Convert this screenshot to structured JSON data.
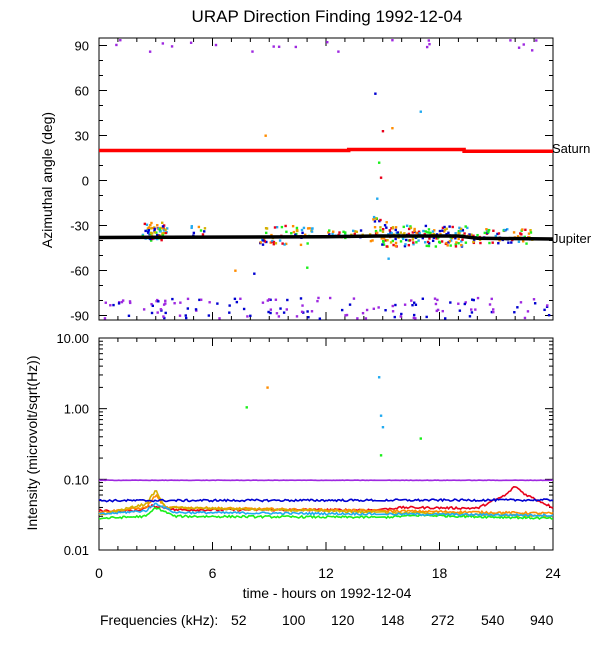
{
  "title": "URAP Direction Finding  1992-12-04",
  "colors": {
    "saturn": "#ff0000",
    "jupiter": "#000000",
    "f52": "#e8001a",
    "f100": "#ff8c00",
    "f120": "#d4b000",
    "f148": "#1aef1a",
    "f272": "#22aaf0",
    "f540": "#0000d0",
    "f940": "#9e28e0"
  },
  "chart_data": [
    {
      "type": "scatter",
      "title": "URAP Direction Finding  1992-12-04",
      "ylabel": "Azimuthal angle (deg)",
      "xlim": [
        0,
        24
      ],
      "ylim": [
        -93,
        95
      ],
      "xticks": [
        0,
        6,
        12,
        18,
        24
      ],
      "yticks": [
        90,
        60,
        30,
        0,
        -30,
        -60,
        -90
      ],
      "ytick_labels": [
        "90",
        "60",
        "30",
        "0",
        "-30",
        "-60",
        "-90"
      ],
      "lines": [
        {
          "name": "Saturn",
          "color": "#ff0000",
          "x": [
            0,
            13.2,
            13.2,
            19.3,
            19.3,
            24
          ],
          "y": [
            20,
            20,
            20.7,
            20.7,
            19.5,
            19.5
          ]
        },
        {
          "name": "Jupiter",
          "color": "#000000",
          "x": [
            0,
            12,
            14.8,
            16,
            18,
            19,
            20,
            24
          ],
          "y": [
            -38,
            -37.5,
            -37,
            -37,
            -37,
            -37,
            -38.5,
            -39
          ]
        }
      ],
      "scatter_clusters": [
        {
          "x_range": [
            2.3,
            3.6
          ],
          "y_center": -34,
          "y_spread": 6,
          "n": 70
        },
        {
          "x_range": [
            4.6,
            5.6
          ],
          "y_center": -34,
          "y_spread": 4,
          "n": 12
        },
        {
          "x_range": [
            8.5,
            11.3
          ],
          "y_center": -36,
          "y_spread": 7,
          "n": 55
        },
        {
          "x_range": [
            12.1,
            14.0
          ],
          "y_center": -36,
          "y_spread": 3,
          "n": 25
        },
        {
          "x_range": [
            14.3,
            15.2
          ],
          "y_center": -33,
          "y_spread": 10,
          "n": 30
        },
        {
          "x_range": [
            15.2,
            19.5
          ],
          "y_center": -37,
          "y_spread": 7,
          "n": 150
        },
        {
          "x_range": [
            19.5,
            23.0
          ],
          "y_center": -37,
          "y_spread": 5,
          "n": 70
        }
      ],
      "scatter_band_low": {
        "x_range": [
          0.2,
          23.8
        ],
        "y_range": [
          -92,
          -78
        ],
        "n": 140
      },
      "scatter_band_high": {
        "x_range": [
          0.2,
          23.8
        ],
        "y_range": [
          86,
          95
        ],
        "n": 22
      },
      "scatter_outliers": [
        {
          "x": 15.5,
          "y": 35
        },
        {
          "x": 15.0,
          "y": 33
        },
        {
          "x": 17.0,
          "y": 46
        },
        {
          "x": 8.8,
          "y": 30
        },
        {
          "x": 14.6,
          "y": 58
        },
        {
          "x": 14.8,
          "y": 12
        },
        {
          "x": 14.9,
          "y": 2
        },
        {
          "x": 14.7,
          "y": -12
        },
        {
          "x": 15.3,
          "y": -52
        },
        {
          "x": 7.2,
          "y": -60
        },
        {
          "x": 8.2,
          "y": -62
        },
        {
          "x": 11.0,
          "y": -58
        }
      ]
    },
    {
      "type": "line",
      "ylabel": "Intensity (microvolt/sqrt(Hz))",
      "xlabel": "time - hours on 1992-12-04",
      "xlim": [
        0,
        24
      ],
      "ylim_log": [
        0.01,
        10
      ],
      "xticks": [
        0,
        6,
        12,
        18,
        24
      ],
      "xtick_labels": [
        "0",
        "6",
        "12",
        "18",
        "24"
      ],
      "yticks": [
        10,
        1,
        0.1,
        0.01
      ],
      "ytick_labels": [
        "10.00",
        "1.00",
        "0.10",
        "0.01"
      ],
      "series": [
        {
          "name": "52",
          "color": "#e8001a",
          "x": [
            0,
            2,
            2.8,
            3.2,
            4,
            8,
            12,
            14.8,
            16,
            20,
            21.5,
            22,
            22.5,
            24
          ],
          "y": [
            0.036,
            0.036,
            0.042,
            0.041,
            0.037,
            0.037,
            0.037,
            0.037,
            0.04,
            0.039,
            0.06,
            0.08,
            0.062,
            0.04
          ]
        },
        {
          "name": "100",
          "color": "#ff8c00",
          "x": [
            0,
            2.5,
            3,
            3.5,
            24
          ],
          "y": [
            0.034,
            0.04,
            0.06,
            0.04,
            0.033
          ]
        },
        {
          "name": "120",
          "color": "#d4b000",
          "x": [
            0,
            2.5,
            3,
            3.5,
            24
          ],
          "y": [
            0.031,
            0.045,
            0.07,
            0.04,
            0.03
          ]
        },
        {
          "name": "148",
          "color": "#1aef1a",
          "x": [
            0,
            2.5,
            3,
            4,
            15,
            17,
            24
          ],
          "y": [
            0.028,
            0.03,
            0.04,
            0.03,
            0.029,
            0.031,
            0.028
          ]
        },
        {
          "name": "272",
          "color": "#22aaf0",
          "x": [
            0,
            2.5,
            3,
            4,
            24
          ],
          "y": [
            0.032,
            0.036,
            0.046,
            0.034,
            0.031
          ]
        },
        {
          "name": "540",
          "color": "#0000d0",
          "x": [
            0,
            24
          ],
          "y": [
            0.05,
            0.051
          ]
        },
        {
          "name": "940",
          "color": "#9e28e0",
          "x": [
            0,
            24
          ],
          "y": [
            0.097,
            0.097
          ]
        }
      ],
      "outliers": [
        {
          "x": 7.8,
          "y": 1.05
        },
        {
          "x": 8.9,
          "y": 2.0
        },
        {
          "x": 14.8,
          "y": 2.8
        },
        {
          "x": 14.9,
          "y": 0.8
        },
        {
          "x": 15.0,
          "y": 0.55
        },
        {
          "x": 17.0,
          "y": 0.38
        },
        {
          "x": 14.9,
          "y": 0.22
        }
      ]
    }
  ],
  "labels": {
    "saturn": "Saturn",
    "jupiter": "Jupiter",
    "top_ylabel": "Azimuthal angle (deg)",
    "bottom_ylabel": "Intensity (microvolt/sqrt(Hz))",
    "xlabel": "time - hours on 1992-12-04",
    "freq_title": "Frequencies (kHz):",
    "freqs": [
      "52",
      "100",
      "120",
      "148",
      "272",
      "540",
      "940"
    ]
  }
}
